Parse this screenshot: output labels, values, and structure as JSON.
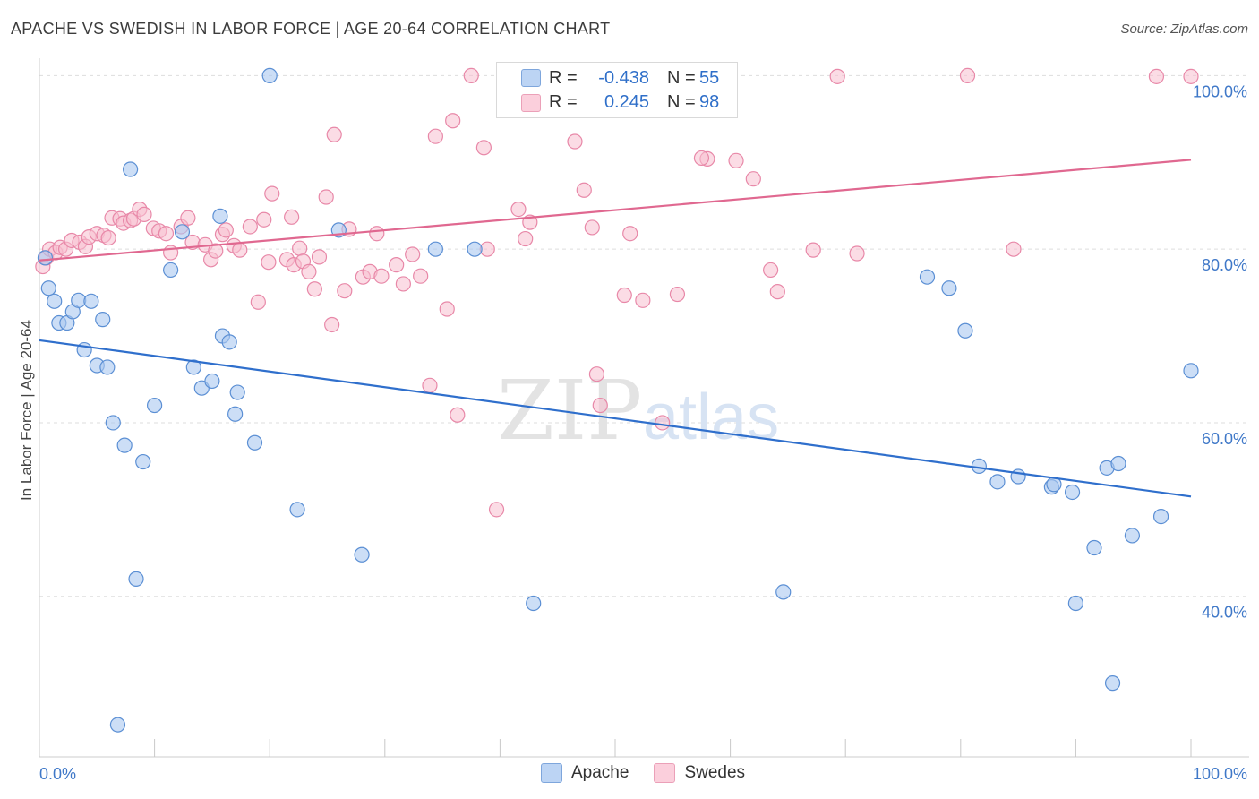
{
  "title": "APACHE VS SWEDISH IN LABOR FORCE | AGE 20-64 CORRELATION CHART",
  "source": "Source: ZipAtlas.com",
  "watermark": {
    "zip": "ZIP",
    "atlas": "atlas"
  },
  "legend": {
    "rows": [
      {
        "r_label": "R =",
        "r_value": "-0.438",
        "n_label": "N =",
        "n_value": "55"
      },
      {
        "r_label": "R =",
        "r_value": "0.245",
        "n_label": "N =",
        "n_value": "98"
      }
    ]
  },
  "bottom_legend": {
    "apache": "Apache",
    "swedes": "Swedes"
  },
  "colors": {
    "apache_fill": "#aac8f0",
    "apache_stroke": "#5b8fd4",
    "apache_line": "#2f6fcc",
    "swedes_fill": "#f8c0d0",
    "swedes_stroke": "#e888a8",
    "swedes_line": "#e06890",
    "tick_label": "#3f78c8",
    "grid": "#dddddd"
  },
  "chart_data": {
    "type": "scatter",
    "xlabel": "",
    "ylabel": "In Labor Force | Age 20-64",
    "xlim": [
      0,
      100
    ],
    "ylim": [
      21.5,
      102
    ],
    "x_tick_labels": [
      {
        "value": 0,
        "label": "0.0%"
      },
      {
        "value": 100,
        "label": "100.0%"
      }
    ],
    "y_tick_labels": [
      {
        "value": 100,
        "label": "100.0%"
      },
      {
        "value": 80,
        "label": "80.0%"
      },
      {
        "value": 60,
        "label": "60.0%"
      },
      {
        "value": 40,
        "label": "40.0%"
      }
    ],
    "grid": true,
    "series": [
      {
        "name": "Apache",
        "trend": {
          "x": [
            0,
            100
          ],
          "y": [
            69.5,
            51.5
          ]
        },
        "points": [
          [
            0.5,
            79
          ],
          [
            0.8,
            75.5
          ],
          [
            1.3,
            74
          ],
          [
            1.7,
            71.5
          ],
          [
            2.4,
            71.5
          ],
          [
            2.9,
            72.8
          ],
          [
            3.4,
            74.1
          ],
          [
            3.9,
            68.4
          ],
          [
            4.5,
            74
          ],
          [
            5,
            66.6
          ],
          [
            5.5,
            71.9
          ],
          [
            5.9,
            66.4
          ],
          [
            6.4,
            60
          ],
          [
            7.4,
            57.4
          ],
          [
            7.9,
            89.2
          ],
          [
            8.4,
            42
          ],
          [
            9,
            55.5
          ],
          [
            10,
            62
          ],
          [
            11.4,
            77.6
          ],
          [
            12.4,
            82
          ],
          [
            13.4,
            66.4
          ],
          [
            14.1,
            64
          ],
          [
            15,
            64.8
          ],
          [
            15.7,
            83.8
          ],
          [
            15.9,
            70
          ],
          [
            16.5,
            69.3
          ],
          [
            17,
            61
          ],
          [
            17.2,
            63.5
          ],
          [
            18.7,
            57.7
          ],
          [
            20,
            100
          ],
          [
            22.4,
            50
          ],
          [
            26,
            82.2
          ],
          [
            28,
            44.8
          ],
          [
            34.4,
            80
          ],
          [
            37.8,
            80
          ],
          [
            42.9,
            39.2
          ],
          [
            64.6,
            40.5
          ],
          [
            77.1,
            76.8
          ],
          [
            79,
            75.5
          ],
          [
            80.4,
            70.6
          ],
          [
            81.6,
            55
          ],
          [
            83.2,
            53.2
          ],
          [
            85,
            53.8
          ],
          [
            87.9,
            52.6
          ],
          [
            88.1,
            52.9
          ],
          [
            89.7,
            52
          ],
          [
            90,
            39.2
          ],
          [
            91.6,
            45.6
          ],
          [
            92.7,
            54.8
          ],
          [
            93.2,
            30
          ],
          [
            93.7,
            55.3
          ],
          [
            94.9,
            47
          ],
          [
            97.4,
            49.2
          ],
          [
            100,
            66
          ],
          [
            6.8,
            25.2
          ]
        ]
      },
      {
        "name": "Swedes",
        "trend": {
          "x": [
            0,
            100
          ],
          "y": [
            78.7,
            90.3
          ]
        },
        "points": [
          [
            0.3,
            78
          ],
          [
            0.6,
            79
          ],
          [
            0.9,
            80
          ],
          [
            1.4,
            79.6
          ],
          [
            1.8,
            80.2
          ],
          [
            2.3,
            80
          ],
          [
            2.8,
            81
          ],
          [
            3.5,
            80.8
          ],
          [
            4,
            80.3
          ],
          [
            4.3,
            81.4
          ],
          [
            5,
            81.8
          ],
          [
            5.6,
            81.6
          ],
          [
            6,
            81.3
          ],
          [
            6.3,
            83.6
          ],
          [
            7,
            83.5
          ],
          [
            7.3,
            83
          ],
          [
            7.9,
            83.3
          ],
          [
            8.2,
            83.5
          ],
          [
            8.7,
            84.6
          ],
          [
            9.1,
            84
          ],
          [
            9.9,
            82.4
          ],
          [
            10.4,
            82.1
          ],
          [
            11,
            81.8
          ],
          [
            11.4,
            79.6
          ],
          [
            12.3,
            82.6
          ],
          [
            12.9,
            83.6
          ],
          [
            13.3,
            80.8
          ],
          [
            14.4,
            80.5
          ],
          [
            14.9,
            78.8
          ],
          [
            15.3,
            79.8
          ],
          [
            15.9,
            81.7
          ],
          [
            16.2,
            82.2
          ],
          [
            16.9,
            80.4
          ],
          [
            17.4,
            79.9
          ],
          [
            18.3,
            82.6
          ],
          [
            19,
            73.9
          ],
          [
            19.5,
            83.4
          ],
          [
            19.9,
            78.5
          ],
          [
            20.2,
            86.4
          ],
          [
            21.5,
            78.8
          ],
          [
            21.9,
            83.7
          ],
          [
            22.1,
            78.2
          ],
          [
            22.6,
            80.1
          ],
          [
            22.9,
            78.6
          ],
          [
            23.4,
            77.4
          ],
          [
            23.9,
            75.4
          ],
          [
            24.3,
            79.1
          ],
          [
            24.9,
            86
          ],
          [
            25.4,
            71.3
          ],
          [
            25.6,
            93.2
          ],
          [
            26.5,
            75.2
          ],
          [
            26.9,
            82.3
          ],
          [
            28.1,
            76.8
          ],
          [
            28.7,
            77.4
          ],
          [
            29.7,
            76.9
          ],
          [
            29.3,
            81.8
          ],
          [
            31,
            78.2
          ],
          [
            31.6,
            76
          ],
          [
            32.4,
            79.4
          ],
          [
            33.1,
            76.9
          ],
          [
            33.9,
            64.3
          ],
          [
            34.4,
            93
          ],
          [
            35.4,
            73.1
          ],
          [
            35.9,
            94.8
          ],
          [
            36.3,
            60.9
          ],
          [
            37.5,
            100
          ],
          [
            38.6,
            91.7
          ],
          [
            38.9,
            80
          ],
          [
            39.7,
            50
          ],
          [
            41.6,
            84.6
          ],
          [
            42.2,
            81.2
          ],
          [
            42.6,
            83.1
          ],
          [
            46.5,
            92.4
          ],
          [
            47.3,
            86.8
          ],
          [
            48,
            82.5
          ],
          [
            48.4,
            65.6
          ],
          [
            48.7,
            62
          ],
          [
            49.7,
            99.9
          ],
          [
            50,
            100
          ],
          [
            50.8,
            74.7
          ],
          [
            51.3,
            81.8
          ],
          [
            52.4,
            74.1
          ],
          [
            54.1,
            60
          ],
          [
            55.4,
            74.8
          ],
          [
            58,
            90.4
          ],
          [
            60.5,
            90.2
          ],
          [
            62,
            88.1
          ],
          [
            63.5,
            77.6
          ],
          [
            64.1,
            75.1
          ],
          [
            67.2,
            79.9
          ],
          [
            69.3,
            99.9
          ],
          [
            71,
            79.5
          ],
          [
            80.6,
            100
          ],
          [
            84.6,
            80
          ],
          [
            100,
            99.9
          ],
          [
            97,
            99.9
          ],
          [
            57.5,
            90.5
          ],
          [
            45.1,
            99.9
          ]
        ]
      }
    ]
  }
}
